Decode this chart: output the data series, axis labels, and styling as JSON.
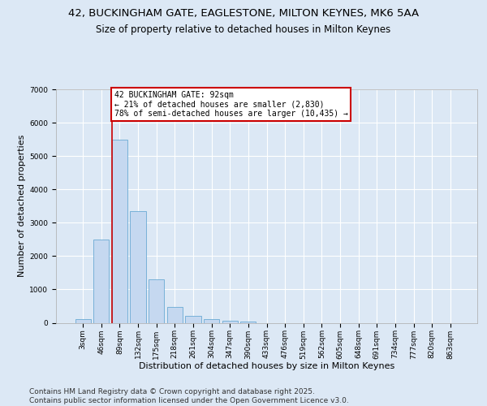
{
  "title": "42, BUCKINGHAM GATE, EAGLESTONE, MILTON KEYNES, MK6 5AA",
  "subtitle": "Size of property relative to detached houses in Milton Keynes",
  "xlabel": "Distribution of detached houses by size in Milton Keynes",
  "ylabel": "Number of detached properties",
  "categories": [
    "3sqm",
    "46sqm",
    "89sqm",
    "132sqm",
    "175sqm",
    "218sqm",
    "261sqm",
    "304sqm",
    "347sqm",
    "390sqm",
    "433sqm",
    "476sqm",
    "519sqm",
    "562sqm",
    "605sqm",
    "648sqm",
    "691sqm",
    "734sqm",
    "777sqm",
    "820sqm",
    "863sqm"
  ],
  "values": [
    100,
    2500,
    5500,
    3350,
    1300,
    480,
    210,
    100,
    60,
    30,
    0,
    0,
    0,
    0,
    0,
    0,
    0,
    0,
    0,
    0,
    0
  ],
  "bar_color": "#c5d8f0",
  "bar_edge_color": "#6aaad4",
  "vline_index": 2,
  "vline_color": "#cc0000",
  "annotation_line1": "42 BUCKINGHAM GATE: 92sqm",
  "annotation_line2": "← 21% of detached houses are smaller (2,830)",
  "annotation_line3": "78% of semi-detached houses are larger (10,435) →",
  "annotation_box_facecolor": "white",
  "annotation_box_edgecolor": "#cc0000",
  "ylim": [
    0,
    7000
  ],
  "yticks": [
    0,
    1000,
    2000,
    3000,
    4000,
    5000,
    6000,
    7000
  ],
  "background_color": "#dce8f5",
  "grid_color": "white",
  "footer": "Contains HM Land Registry data © Crown copyright and database right 2025.\nContains public sector information licensed under the Open Government Licence v3.0.",
  "title_fontsize": 9.5,
  "subtitle_fontsize": 8.5,
  "label_fontsize": 8,
  "tick_fontsize": 6.5,
  "annotation_fontsize": 7,
  "footer_fontsize": 6.5
}
